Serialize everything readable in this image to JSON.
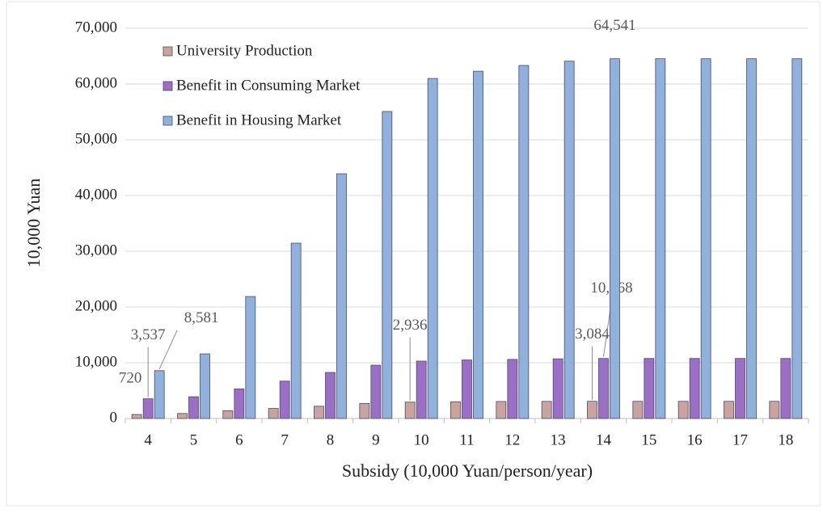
{
  "chart_data": {
    "type": "bar",
    "xlabel": "Subsidy (10,000 Yuan/person/year)",
    "ylabel": "10,000 Yuan",
    "categories": [
      "4",
      "5",
      "6",
      "7",
      "8",
      "9",
      "10",
      "11",
      "12",
      "13",
      "14",
      "15",
      "16",
      "17",
      "18"
    ],
    "series": [
      {
        "name": "University Production",
        "color": "#c9a39d",
        "values": [
          720,
          900,
          1400,
          1800,
          2200,
          2700,
          2936,
          3000,
          3050,
          3070,
          3084,
          3084,
          3084,
          3084,
          3084
        ],
        "value_labels": [
          "720",
          null,
          null,
          null,
          null,
          null,
          "2,936",
          null,
          null,
          null,
          "3,084",
          null,
          null,
          null,
          null
        ]
      },
      {
        "name": "Benefit in Consuming Market",
        "color": "#9b6fc6",
        "values": [
          3537,
          3900,
          5300,
          6700,
          8260,
          9560,
          10290,
          10500,
          10600,
          10700,
          10768,
          10768,
          10768,
          10768,
          10768
        ],
        "value_labels": [
          "3,537",
          null,
          null,
          null,
          null,
          null,
          null,
          null,
          null,
          null,
          "10,768",
          null,
          null,
          null,
          null
        ]
      },
      {
        "name": "Benefit in Housing Market",
        "color": "#8fb1dc",
        "values": [
          8581,
          11590,
          21880,
          31450,
          43900,
          55070,
          61000,
          62300,
          63330,
          64100,
          64541,
          64541,
          64541,
          64541,
          64541
        ],
        "value_labels": [
          "8,581",
          null,
          null,
          null,
          null,
          null,
          null,
          null,
          null,
          null,
          "64,541",
          null,
          null,
          null,
          null
        ]
      }
    ],
    "ylim": [
      0,
      70000
    ],
    "yticks": [
      0,
      {
        "value": 10000,
        "label": "10,000"
      },
      {
        "value": 20000,
        "label": "20,000"
      },
      {
        "value": 30000,
        "label": "30,000"
      },
      {
        "value": 40000,
        "label": "40,000"
      },
      {
        "value": 50000,
        "label": "50,000"
      },
      {
        "value": 60000,
        "label": "60,000"
      },
      {
        "value": 70000,
        "label": "70,000"
      }
    ],
    "grid": true
  }
}
